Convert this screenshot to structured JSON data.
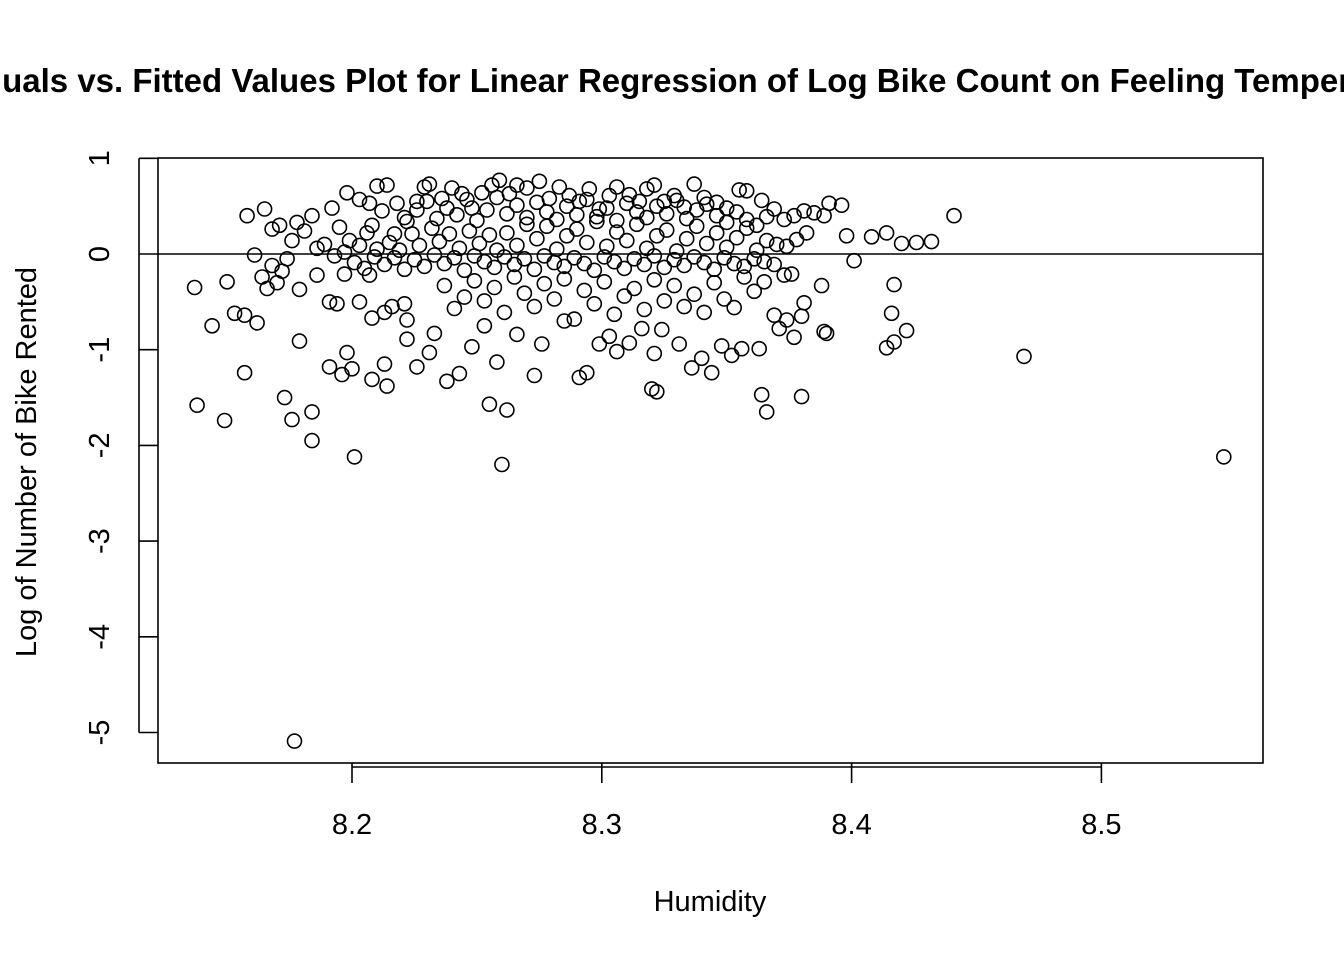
{
  "chart_data": {
    "type": "scatter",
    "title": "Residuals vs. Fitted Values Plot for Linear Regression of Log Bike Count on Feeling Temperature",
    "xlabel": "Humidity",
    "ylabel": "Log of Number of Bike Rented",
    "xlim": [
      8.122,
      8.565
    ],
    "ylim": [
      -5.0,
      1.0
    ],
    "xticks": [
      8.2,
      8.3,
      8.4,
      8.5
    ],
    "xtick_labels": [
      "8.2",
      "8.3",
      "8.4",
      "8.5"
    ],
    "yticks": [
      1,
      0,
      -1,
      -2,
      -3,
      -4,
      -5
    ],
    "ytick_labels": [
      "1",
      "0",
      "-1",
      "-2",
      "-3",
      "-4",
      "-5"
    ],
    "reference_line_y": 0,
    "marker": "open-circle",
    "color": "#000000",
    "points": [
      [
        8.158,
        0.4
      ],
      [
        8.165,
        0.47
      ],
      [
        8.168,
        0.26
      ],
      [
        8.171,
        0.3
      ],
      [
        8.176,
        0.14
      ],
      [
        8.178,
        0.33
      ],
      [
        8.181,
        0.24
      ],
      [
        8.184,
        0.4
      ],
      [
        8.174,
        -0.05
      ],
      [
        8.179,
        -0.37
      ],
      [
        8.137,
        -0.35
      ],
      [
        8.144,
        -0.75
      ],
      [
        8.15,
        -0.29
      ],
      [
        8.153,
        -0.62
      ],
      [
        8.157,
        -0.64
      ],
      [
        8.162,
        -0.72
      ],
      [
        8.166,
        -0.36
      ],
      [
        8.17,
        -0.3
      ],
      [
        8.157,
        -1.24
      ],
      [
        8.138,
        -1.58
      ],
      [
        8.149,
        -1.74
      ],
      [
        8.173,
        -1.5
      ],
      [
        8.176,
        -1.73
      ],
      [
        8.184,
        -1.65
      ],
      [
        8.184,
        -1.95
      ],
      [
        8.179,
        -0.91
      ],
      [
        8.191,
        -1.18
      ],
      [
        8.196,
        -1.26
      ],
      [
        8.198,
        -1.03
      ],
      [
        8.2,
        -1.2
      ],
      [
        8.201,
        -2.12
      ],
      [
        8.177,
        -5.09
      ],
      [
        8.186,
        -0.22
      ],
      [
        8.191,
        -0.5
      ],
      [
        8.194,
        -0.52
      ],
      [
        8.197,
        -0.21
      ],
      [
        8.203,
        -0.5
      ],
      [
        8.207,
        -0.22
      ],
      [
        8.208,
        -0.67
      ],
      [
        8.213,
        -0.61
      ],
      [
        8.216,
        -0.55
      ],
      [
        8.221,
        -0.52
      ],
      [
        8.222,
        -0.69
      ],
      [
        8.222,
        -0.89
      ],
      [
        8.213,
        -1.15
      ],
      [
        8.214,
        -1.38
      ],
      [
        8.208,
        -1.31
      ],
      [
        8.226,
        -1.18
      ],
      [
        8.231,
        -1.03
      ],
      [
        8.192,
        0.48
      ],
      [
        8.198,
        0.64
      ],
      [
        8.203,
        0.57
      ],
      [
        8.207,
        0.53
      ],
      [
        8.21,
        0.71
      ],
      [
        8.214,
        0.72
      ],
      [
        8.218,
        0.53
      ],
      [
        8.222,
        0.34
      ],
      [
        8.226,
        0.55
      ],
      [
        8.229,
        0.7
      ],
      [
        8.231,
        0.73
      ],
      [
        8.236,
        0.58
      ],
      [
        8.24,
        0.69
      ],
      [
        8.244,
        0.63
      ],
      [
        8.248,
        0.48
      ],
      [
        8.252,
        0.64
      ],
      [
        8.256,
        0.72
      ],
      [
        8.259,
        0.77
      ],
      [
        8.263,
        0.63
      ],
      [
        8.266,
        0.72
      ],
      [
        8.27,
        0.69
      ],
      [
        8.275,
        0.76
      ],
      [
        8.279,
        0.58
      ],
      [
        8.283,
        0.7
      ],
      [
        8.287,
        0.61
      ],
      [
        8.291,
        0.55
      ],
      [
        8.295,
        0.68
      ],
      [
        8.299,
        0.47
      ],
      [
        8.303,
        0.61
      ],
      [
        8.306,
        0.7
      ],
      [
        8.311,
        0.62
      ],
      [
        8.315,
        0.55
      ],
      [
        8.318,
        0.68
      ],
      [
        8.321,
        0.72
      ],
      [
        8.325,
        0.55
      ],
      [
        8.329,
        0.61
      ],
      [
        8.333,
        0.49
      ],
      [
        8.337,
        0.73
      ],
      [
        8.341,
        0.59
      ],
      [
        8.346,
        0.54
      ],
      [
        8.35,
        0.48
      ],
      [
        8.355,
        0.67
      ],
      [
        8.358,
        0.66
      ],
      [
        8.364,
        0.56
      ],
      [
        8.369,
        0.47
      ],
      [
        8.373,
        0.36
      ],
      [
        8.377,
        0.4
      ],
      [
        8.381,
        0.45
      ],
      [
        8.385,
        0.43
      ],
      [
        8.389,
        0.4
      ],
      [
        8.391,
        0.53
      ],
      [
        8.396,
        0.51
      ],
      [
        8.398,
        0.19
      ],
      [
        8.401,
        -0.07
      ],
      [
        8.408,
        0.18
      ],
      [
        8.414,
        0.22
      ],
      [
        8.42,
        0.11
      ],
      [
        8.426,
        0.12
      ],
      [
        8.432,
        0.13
      ],
      [
        8.441,
        0.4
      ],
      [
        8.417,
        -0.32
      ],
      [
        8.416,
        -0.62
      ],
      [
        8.422,
        -0.8
      ],
      [
        8.414,
        -0.98
      ],
      [
        8.417,
        -0.92
      ],
      [
        8.388,
        -0.33
      ],
      [
        8.389,
        -0.81
      ],
      [
        8.39,
        -0.83
      ],
      [
        8.38,
        -1.49
      ],
      [
        8.469,
        -1.07
      ],
      [
        8.549,
        -2.12
      ],
      [
        8.195,
        0.28
      ],
      [
        8.199,
        0.14
      ],
      [
        8.203,
        0.09
      ],
      [
        8.206,
        0.22
      ],
      [
        8.21,
        0.05
      ],
      [
        8.215,
        0.12
      ],
      [
        8.219,
        0.04
      ],
      [
        8.224,
        0.21
      ],
      [
        8.227,
        0.09
      ],
      [
        8.232,
        0.27
      ],
      [
        8.235,
        0.13
      ],
      [
        8.239,
        0.21
      ],
      [
        8.243,
        0.06
      ],
      [
        8.247,
        0.24
      ],
      [
        8.251,
        0.11
      ],
      [
        8.255,
        0.2
      ],
      [
        8.258,
        0.04
      ],
      [
        8.262,
        0.22
      ],
      [
        8.266,
        0.09
      ],
      [
        8.27,
        0.31
      ],
      [
        8.274,
        0.16
      ],
      [
        8.278,
        0.29
      ],
      [
        8.282,
        0.05
      ],
      [
        8.286,
        0.19
      ],
      [
        8.29,
        0.26
      ],
      [
        8.294,
        0.12
      ],
      [
        8.298,
        0.34
      ],
      [
        8.302,
        0.08
      ],
      [
        8.306,
        0.23
      ],
      [
        8.31,
        0.14
      ],
      [
        8.314,
        0.31
      ],
      [
        8.318,
        0.06
      ],
      [
        8.322,
        0.19
      ],
      [
        8.326,
        0.25
      ],
      [
        8.33,
        0.03
      ],
      [
        8.334,
        0.16
      ],
      [
        8.338,
        0.29
      ],
      [
        8.342,
        0.11
      ],
      [
        8.346,
        0.22
      ],
      [
        8.35,
        0.07
      ],
      [
        8.354,
        0.17
      ],
      [
        8.358,
        0.27
      ],
      [
        8.362,
        0.04
      ],
      [
        8.366,
        0.14
      ],
      [
        8.37,
        0.1
      ],
      [
        8.374,
        0.08
      ],
      [
        8.378,
        0.15
      ],
      [
        8.382,
        0.22
      ],
      [
        8.376,
        -0.21
      ],
      [
        8.381,
        -0.51
      ],
      [
        8.237,
        -0.33
      ],
      [
        8.241,
        -0.57
      ],
      [
        8.245,
        -0.45
      ],
      [
        8.249,
        -0.28
      ],
      [
        8.253,
        -0.49
      ],
      [
        8.257,
        -0.35
      ],
      [
        8.261,
        -0.61
      ],
      [
        8.265,
        -0.24
      ],
      [
        8.269,
        -0.41
      ],
      [
        8.273,
        -0.55
      ],
      [
        8.277,
        -0.31
      ],
      [
        8.281,
        -0.47
      ],
      [
        8.285,
        -0.26
      ],
      [
        8.289,
        -0.68
      ],
      [
        8.293,
        -0.38
      ],
      [
        8.297,
        -0.52
      ],
      [
        8.301,
        -0.29
      ],
      [
        8.305,
        -0.63
      ],
      [
        8.309,
        -0.44
      ],
      [
        8.313,
        -0.36
      ],
      [
        8.317,
        -0.58
      ],
      [
        8.321,
        -0.27
      ],
      [
        8.325,
        -0.49
      ],
      [
        8.329,
        -0.33
      ],
      [
        8.333,
        -0.55
      ],
      [
        8.337,
        -0.42
      ],
      [
        8.341,
        -0.61
      ],
      [
        8.345,
        -0.3
      ],
      [
        8.349,
        -0.47
      ],
      [
        8.353,
        -0.56
      ],
      [
        8.357,
        -0.24
      ],
      [
        8.361,
        -0.39
      ],
      [
        8.365,
        -0.29
      ],
      [
        8.369,
        -0.64
      ],
      [
        8.373,
        -0.22
      ],
      [
        8.233,
        -0.83
      ],
      [
        8.238,
        -1.33
      ],
      [
        8.243,
        -1.25
      ],
      [
        8.248,
        -0.97
      ],
      [
        8.253,
        -0.75
      ],
      [
        8.255,
        -1.57
      ],
      [
        8.258,
        -1.13
      ],
      [
        8.26,
        -2.2
      ],
      [
        8.262,
        -1.63
      ],
      [
        8.266,
        -0.84
      ],
      [
        8.273,
        -1.27
      ],
      [
        8.276,
        -0.94
      ],
      [
        8.285,
        -0.7
      ],
      [
        8.291,
        -1.29
      ],
      [
        8.294,
        -1.24
      ],
      [
        8.299,
        -0.94
      ],
      [
        8.303,
        -0.86
      ],
      [
        8.306,
        -1.02
      ],
      [
        8.311,
        -0.93
      ],
      [
        8.316,
        -0.78
      ],
      [
        8.32,
        -1.41
      ],
      [
        8.322,
        -1.44
      ],
      [
        8.321,
        -1.04
      ],
      [
        8.324,
        -0.79
      ],
      [
        8.331,
        -0.94
      ],
      [
        8.336,
        -1.19
      ],
      [
        8.34,
        -1.09
      ],
      [
        8.344,
        -1.24
      ],
      [
        8.348,
        -0.96
      ],
      [
        8.352,
        -1.06
      ],
      [
        8.356,
        -0.99
      ],
      [
        8.363,
        -0.99
      ],
      [
        8.364,
        -1.47
      ],
      [
        8.366,
        -1.65
      ],
      [
        8.371,
        -0.78
      ],
      [
        8.374,
        -0.69
      ],
      [
        8.377,
        -0.87
      ],
      [
        8.38,
        -0.65
      ],
      [
        8.208,
        0.3
      ],
      [
        8.212,
        0.45
      ],
      [
        8.217,
        0.21
      ],
      [
        8.221,
        0.38
      ],
      [
        8.226,
        0.46
      ],
      [
        8.23,
        0.55
      ],
      [
        8.234,
        0.37
      ],
      [
        8.238,
        0.48
      ],
      [
        8.242,
        0.41
      ],
      [
        8.246,
        0.57
      ],
      [
        8.25,
        0.35
      ],
      [
        8.254,
        0.46
      ],
      [
        8.258,
        0.59
      ],
      [
        8.262,
        0.42
      ],
      [
        8.266,
        0.51
      ],
      [
        8.27,
        0.38
      ],
      [
        8.274,
        0.54
      ],
      [
        8.278,
        0.44
      ],
      [
        8.282,
        0.36
      ],
      [
        8.286,
        0.5
      ],
      [
        8.29,
        0.41
      ],
      [
        8.294,
        0.57
      ],
      [
        8.298,
        0.39
      ],
      [
        8.302,
        0.48
      ],
      [
        8.306,
        0.35
      ],
      [
        8.31,
        0.53
      ],
      [
        8.314,
        0.44
      ],
      [
        8.318,
        0.38
      ],
      [
        8.322,
        0.5
      ],
      [
        8.326,
        0.42
      ],
      [
        8.33,
        0.56
      ],
      [
        8.334,
        0.37
      ],
      [
        8.338,
        0.46
      ],
      [
        8.342,
        0.52
      ],
      [
        8.346,
        0.4
      ],
      [
        8.35,
        0.33
      ],
      [
        8.354,
        0.44
      ],
      [
        8.358,
        0.36
      ],
      [
        8.362,
        0.3
      ],
      [
        8.366,
        0.39
      ],
      [
        8.161,
        -0.01
      ],
      [
        8.164,
        -0.24
      ],
      [
        8.168,
        -0.12
      ],
      [
        8.172,
        -0.18
      ],
      [
        8.186,
        0.06
      ],
      [
        8.189,
        0.1
      ],
      [
        8.193,
        -0.02
      ],
      [
        8.197,
        0.02
      ],
      [
        8.201,
        -0.09
      ],
      [
        8.205,
        -0.15
      ],
      [
        8.209,
        -0.03
      ],
      [
        8.213,
        -0.11
      ],
      [
        8.217,
        -0.04
      ],
      [
        8.221,
        -0.16
      ],
      [
        8.225,
        -0.06
      ],
      [
        8.229,
        -0.13
      ],
      [
        8.233,
        -0.01
      ],
      [
        8.237,
        -0.1
      ],
      [
        8.241,
        -0.04
      ],
      [
        8.245,
        -0.17
      ],
      [
        8.249,
        -0.02
      ],
      [
        8.253,
        -0.08
      ],
      [
        8.257,
        -0.14
      ],
      [
        8.261,
        -0.03
      ],
      [
        8.265,
        -0.11
      ],
      [
        8.269,
        -0.05
      ],
      [
        8.273,
        -0.16
      ],
      [
        8.277,
        -0.02
      ],
      [
        8.281,
        -0.09
      ],
      [
        8.285,
        -0.13
      ],
      [
        8.289,
        -0.04
      ],
      [
        8.293,
        -0.1
      ],
      [
        8.297,
        -0.17
      ],
      [
        8.301,
        -0.03
      ],
      [
        8.305,
        -0.08
      ],
      [
        8.309,
        -0.15
      ],
      [
        8.313,
        -0.05
      ],
      [
        8.317,
        -0.11
      ],
      [
        8.321,
        -0.02
      ],
      [
        8.325,
        -0.14
      ],
      [
        8.329,
        -0.06
      ],
      [
        8.333,
        -0.12
      ],
      [
        8.337,
        -0.03
      ],
      [
        8.341,
        -0.09
      ],
      [
        8.345,
        -0.16
      ],
      [
        8.349,
        -0.04
      ],
      [
        8.353,
        -0.1
      ],
      [
        8.357,
        -0.13
      ],
      [
        8.361,
        -0.05
      ],
      [
        8.365,
        -0.08
      ],
      [
        8.369,
        -0.11
      ]
    ]
  }
}
